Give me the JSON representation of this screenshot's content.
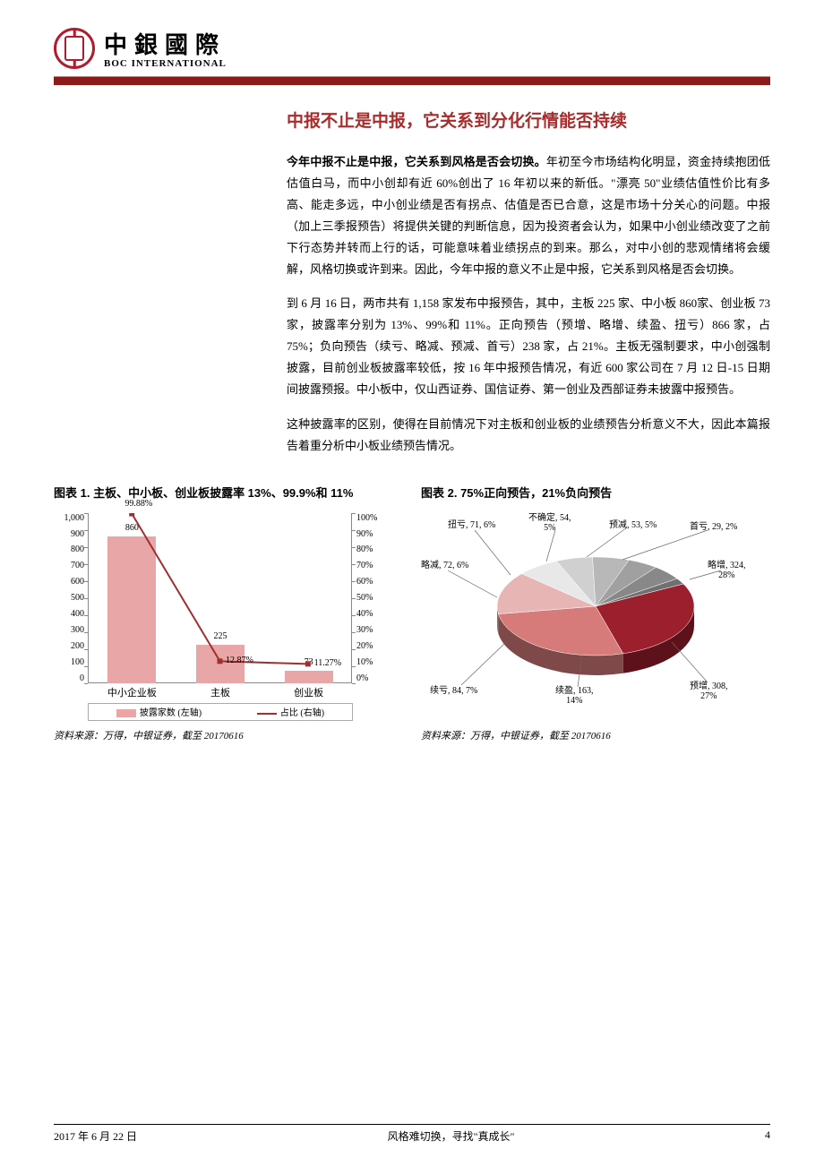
{
  "header": {
    "logo_cn": "中銀國際",
    "logo_en": "BOC INTERNATIONAL"
  },
  "title": "中报不止是中报，它关系到分化行情能否持续",
  "paragraphs": {
    "p1_lead": "今年中报不止是中报，它关系到风格是否会切换。",
    "p1_rest": "年初至今市场结构化明显，资金持续抱团低估值白马，而中小创却有近 60%创出了 16 年初以来的新低。\"漂亮 50\"业绩估值性价比有多高、能走多远，中小创业绩是否有拐点、估值是否已合意，这是市场十分关心的问题。中报（加上三季报预告）将提供关键的判断信息，因为投资者会认为，如果中小创业绩改变了之前下行态势并转而上行的话，可能意味着业绩拐点的到来。那么，对中小创的悲观情绪将会缓解，风格切换或许到来。因此，今年中报的意义不止是中报，它关系到风格是否会切换。",
    "p2": "到 6 月 16 日，两市共有 1,158 家发布中报预告，其中，主板 225 家、中小板 860家、创业板 73 家，披露率分别为 13%、99%和 11%。正向预告（预增、略增、续盈、扭亏）866 家，占 75%；负向预告（续亏、略减、预减、首亏）238 家，占 21%。主板无强制要求，中小创强制披露，目前创业板披露率较低，按 16 年中报预告情况，有近 600 家公司在 7 月 12 日-15 日期间披露预报。中小板中，仅山西证券、国信证券、第一创业及西部证券未披露中报预告。",
    "p3": "这种披露率的区别，使得在目前情况下对主板和创业板的业绩预告分析意义不大，因此本篇报告着重分析中小板业绩预告情况。"
  },
  "chart1": {
    "title": "图表 1. 主板、中小板、创业板披露率 13%、99.9%和 11%",
    "type": "bar+line",
    "categories": [
      "中小企业板",
      "主板",
      "创业板"
    ],
    "bar_values": [
      860,
      225,
      73
    ],
    "line_values_pct": [
      99.88,
      12.87,
      11.27
    ],
    "line_labels": [
      "99.88%",
      "12.87%",
      "11.27%"
    ],
    "y_left": {
      "min": 0,
      "max": 1000,
      "step": 100
    },
    "y_right": {
      "min": 0,
      "max": 100,
      "step": 10,
      "suffix": "%"
    },
    "bar_color": "#e8a6a6",
    "line_color": "#a03030",
    "legend_bar": "披露家数 (左轴)",
    "legend_line": "占比 (右轴)",
    "source": "资料来源：万得，中银证券，截至 20170616"
  },
  "chart2": {
    "title": "图表 2. 75%正向预告，21%负向预告",
    "type": "pie-3d",
    "slices": [
      {
        "name": "略增",
        "count": 324,
        "pct": 28,
        "color": "#9c1f2e"
      },
      {
        "name": "预增",
        "count": 308,
        "pct": 27,
        "color": "#d67a7a"
      },
      {
        "name": "续盈",
        "count": 163,
        "pct": 14,
        "color": "#e8b5b5"
      },
      {
        "name": "续亏",
        "count": 84,
        "pct": 7,
        "color": "#e8e8e8"
      },
      {
        "name": "略减",
        "count": 72,
        "pct": 6,
        "color": "#d0d0d0"
      },
      {
        "name": "扭亏",
        "count": 71,
        "pct": 6,
        "color": "#b8b8b8"
      },
      {
        "name": "不确定",
        "count": 54,
        "pct": 5,
        "color": "#a0a0a0"
      },
      {
        "name": "预减",
        "count": 53,
        "pct": 5,
        "color": "#888888"
      },
      {
        "name": "首亏",
        "count": 29,
        "pct": 2,
        "color": "#707070"
      }
    ],
    "labels": {
      "l0": "略增, 324,\n28%",
      "l1": "预增, 308,\n27%",
      "l2": "续盈, 163,\n14%",
      "l3": "续亏, 84, 7%",
      "l4": "略减, 72, 6%",
      "l5": "扭亏, 71, 6%",
      "l6": "不确定, 54,\n5%",
      "l7": "预减, 53, 5%",
      "l8": "首亏, 29, 2%"
    },
    "source": "资料来源：万得，中银证券，截至 20170616"
  },
  "footer": {
    "date": "2017 年 6 月 22 日",
    "center": "风格难切换，寻找\"真成长\"",
    "page": "4"
  }
}
